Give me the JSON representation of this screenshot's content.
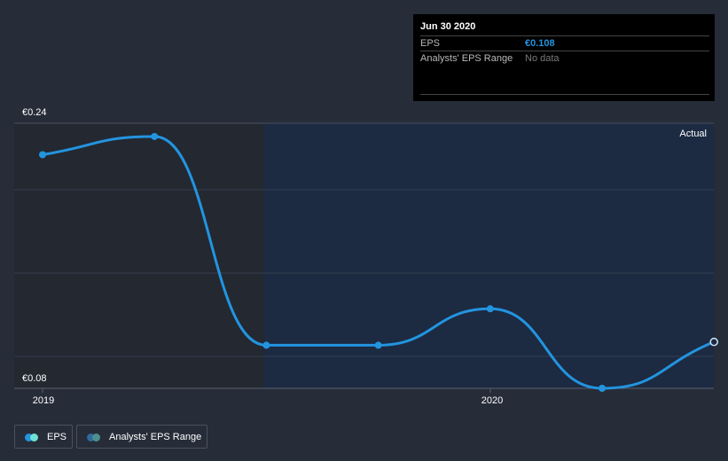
{
  "tooltip": {
    "date": "Jun 30 2020",
    "rows": [
      {
        "label": "EPS",
        "value": "€0.108",
        "color": "#2394df"
      },
      {
        "label": "Analysts' EPS Range",
        "value": "No data",
        "color": "#7a7a7a"
      }
    ]
  },
  "axis": {
    "y_top_label": "€0.24",
    "y_bottom_label": "€0.08",
    "x_labels": [
      "2019",
      "2020"
    ]
  },
  "region_label": "Actual",
  "legend": [
    {
      "label": "EPS",
      "colors": [
        "#2394df",
        "#6ee0d6"
      ]
    },
    {
      "label": "Analysts' EPS Range",
      "colors": [
        "#2f6a9c",
        "#4d8f8f"
      ]
    }
  ],
  "colors": {
    "background": "#262c38",
    "line": "#2394df",
    "forecast_region": "#1b2a45",
    "past_region": "#222730"
  },
  "chart_data": {
    "type": "line",
    "title": "",
    "xlabel": "",
    "ylabel": "EPS",
    "ylim": [
      0.08,
      0.24
    ],
    "x": [
      "Dec 2018",
      "Mar 2019",
      "Jun 2019",
      "Sep 2019",
      "Dec 2019",
      "Mar 2020",
      "Jun 2020"
    ],
    "series": [
      {
        "name": "EPS",
        "values": [
          0.221,
          0.232,
          0.106,
          0.106,
          0.128,
          0.08,
          0.108
        ]
      }
    ],
    "x_tick_labels": [
      "2019",
      "2020"
    ],
    "y_tick_labels": [
      "€0.24",
      "€0.08"
    ],
    "annotations": [
      "Actual"
    ],
    "legend": [
      "EPS",
      "Analysts' EPS Range"
    ],
    "grid": true,
    "legend_position": "bottom-left"
  }
}
